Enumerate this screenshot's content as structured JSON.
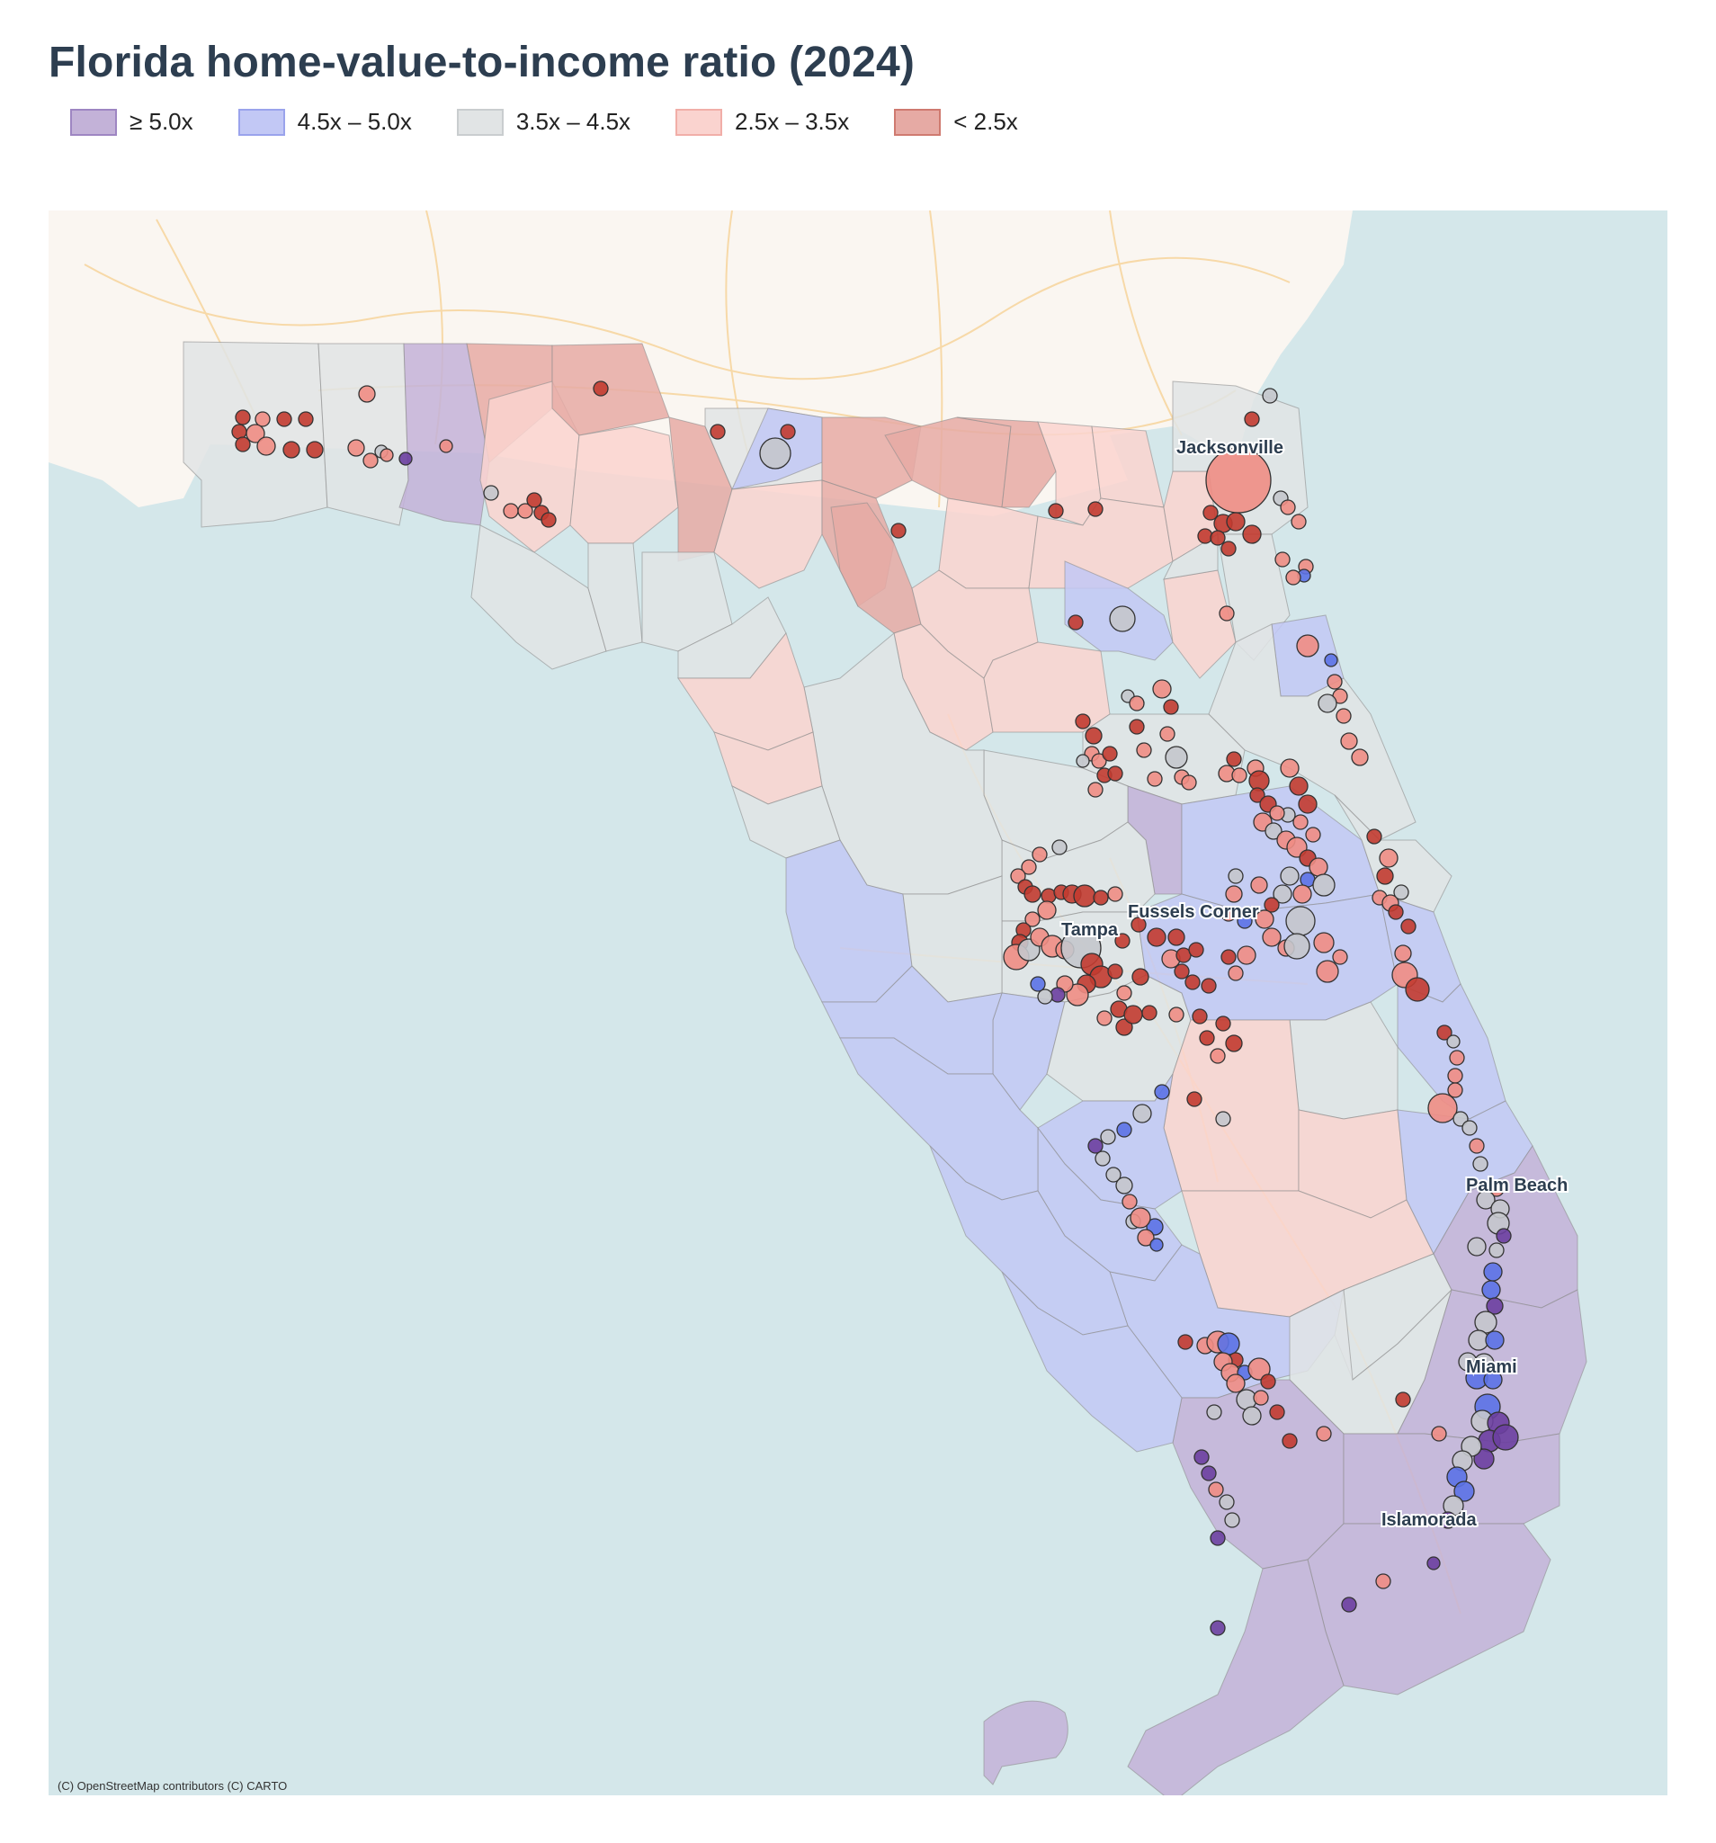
{
  "title": "Florida home-value-to-income ratio (2024)",
  "attribution": "(C) OpenStreetMap contributors (C) CARTO",
  "legend": [
    {
      "label": "≥ 5.0x",
      "fill": "#c3b2d8",
      "stroke": "#9e86c2"
    },
    {
      "label": "4.5x – 5.0x",
      "fill": "#c2c8f5",
      "stroke": "#9aa3ec"
    },
    {
      "label": "3.5x – 4.5x",
      "fill": "#e1e4e5",
      "stroke": "#c9cdcf"
    },
    {
      "label": "2.5x – 3.5x",
      "fill": "#fad3cf",
      "stroke": "#f1aea8"
    },
    {
      "label": "< 2.5x",
      "fill": "#e6aaa4",
      "stroke": "#cf7a70"
    }
  ],
  "map": {
    "basemap": "carto-positron",
    "colors": {
      "water": "#d4e7ea",
      "land": "#faf6f1",
      "roads": "#f7d9a8",
      "point_high": "#6b3fa0",
      "point_mid_high": "#5b72e6",
      "point_mid": "#c4c7cc",
      "point_mid_low": "#ef8d84",
      "point_low": "#c23b30"
    },
    "city_labels": [
      "Jacksonville",
      "Tampa",
      "Fussels Corner",
      "Palm Beach",
      "Miami",
      "Islamorada"
    ]
  }
}
